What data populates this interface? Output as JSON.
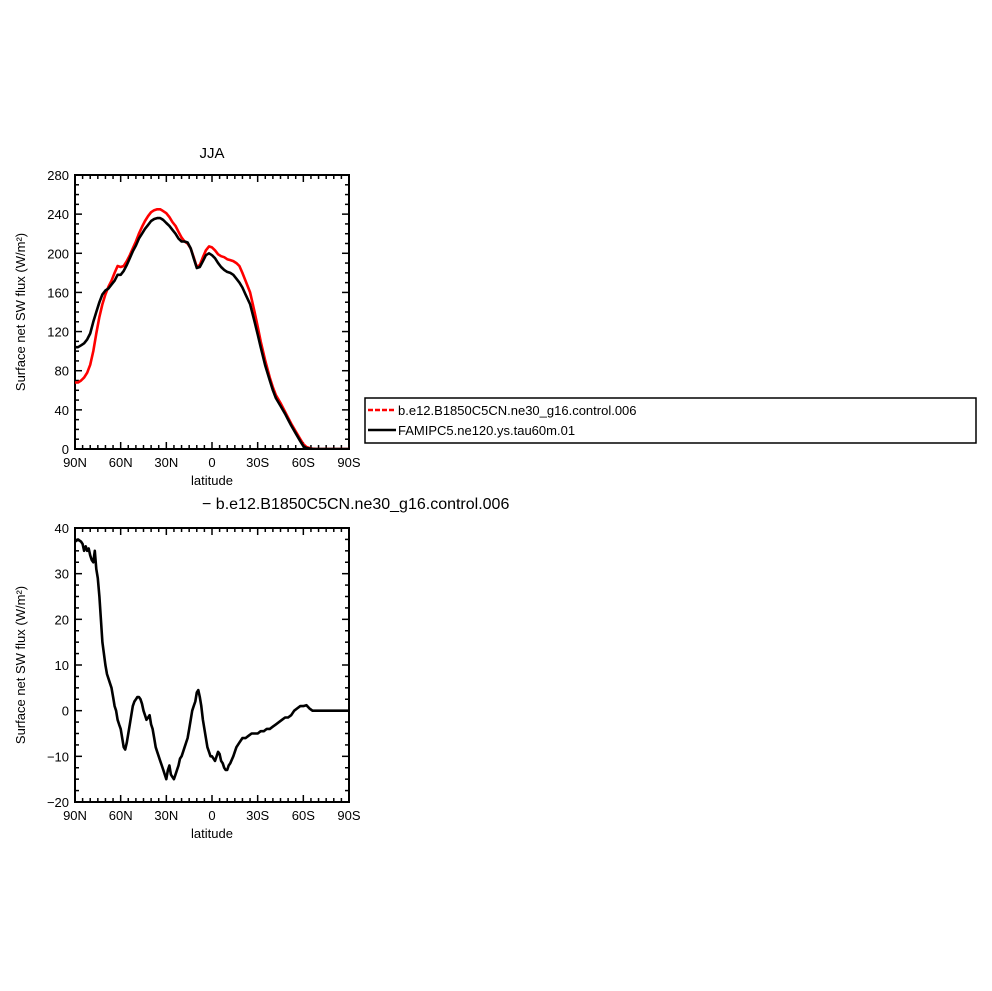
{
  "chart_data": [
    {
      "type": "line",
      "title": "JJA",
      "xlabel": "latitude",
      "ylabel": "Surface net SW flux (W/m²)",
      "xlim": [
        90,
        -90
      ],
      "ylim": [
        0,
        280
      ],
      "xticks": [
        90,
        60,
        30,
        0,
        -30,
        -60,
        -90
      ],
      "xtick_labels": [
        "90N",
        "60N",
        "30N",
        "0",
        "30S",
        "60S",
        "90S"
      ],
      "yticks": [
        0,
        40,
        80,
        120,
        160,
        200,
        240,
        280
      ],
      "ytick_labels": [
        "0",
        "40",
        "80",
        "120",
        "160",
        "200",
        "240",
        "280"
      ],
      "legend_position": "right",
      "series": [
        {
          "name": "b.e12.B1850C5CN.ne30_g16.control.006",
          "color": "#ff0000",
          "dash": true,
          "x": [
            90,
            88,
            86,
            84,
            82,
            80,
            78,
            76,
            74,
            72,
            70,
            68,
            66,
            64,
            62,
            60,
            58,
            56,
            54,
            52,
            50,
            48,
            46,
            44,
            42,
            40,
            38,
            36,
            34,
            33,
            32,
            30,
            28,
            26,
            24,
            22,
            20,
            18,
            16,
            14,
            12,
            10,
            8,
            6,
            4,
            2,
            0,
            -2,
            -4,
            -6,
            -8,
            -10,
            -12,
            -14,
            -16,
            -18,
            -20,
            -22,
            -25,
            -28,
            -30,
            -32,
            -35,
            -38,
            -40,
            -42,
            -45,
            -48,
            -50,
            -52,
            -55,
            -58,
            -60,
            -62,
            -64,
            -65,
            -66,
            -68,
            -70,
            -72,
            -75,
            -78,
            -90
          ],
          "y": [
            68,
            68,
            70,
            73,
            78,
            86,
            100,
            118,
            135,
            148,
            158,
            166,
            172,
            180,
            187,
            186,
            187,
            192,
            198,
            205,
            212,
            220,
            227,
            233,
            238,
            242,
            244,
            245,
            245,
            244,
            243,
            241,
            237,
            232,
            228,
            222,
            216,
            212,
            210,
            205,
            196,
            186,
            188,
            196,
            203,
            207,
            206,
            203,
            199,
            197,
            196,
            194,
            193,
            192,
            190,
            187,
            180,
            172,
            160,
            140,
            125,
            110,
            90,
            73,
            63,
            55,
            47,
            38,
            32,
            26,
            18,
            10,
            5,
            2,
            1,
            0.5,
            0.3,
            0.1,
            0,
            0,
            0,
            0,
            0
          ]
        },
        {
          "name": "FAMIPC5.ne120.ys.tau60m.01",
          "color": "#000000",
          "dash": false,
          "x": [
            90,
            88,
            86,
            84,
            82,
            80,
            78,
            76,
            74,
            72,
            70,
            68,
            66,
            64,
            62,
            60,
            58,
            56,
            54,
            52,
            50,
            48,
            46,
            44,
            42,
            40,
            38,
            36,
            34,
            33,
            32,
            30,
            28,
            26,
            24,
            22,
            20,
            18,
            16,
            14,
            12,
            10,
            8,
            6,
            4,
            2,
            0,
            -2,
            -4,
            -6,
            -8,
            -10,
            -12,
            -14,
            -16,
            -18,
            -20,
            -22,
            -25,
            -28,
            -30,
            -32,
            -35,
            -38,
            -40,
            -42,
            -45,
            -48,
            -50,
            -52,
            -55,
            -58,
            -60,
            -62,
            -64,
            -65,
            -66,
            -68,
            -70,
            -72,
            -75,
            -78,
            -90
          ],
          "y": [
            104,
            104,
            106,
            108,
            112,
            118,
            130,
            140,
            150,
            158,
            162,
            164,
            168,
            172,
            178,
            178,
            182,
            188,
            195,
            202,
            208,
            215,
            220,
            225,
            229,
            233,
            235,
            236,
            236,
            235,
            234,
            231,
            228,
            224,
            220,
            215,
            212,
            212,
            211,
            205,
            195,
            185,
            186,
            192,
            198,
            200,
            198,
            195,
            190,
            186,
            183,
            181,
            180,
            178,
            174,
            170,
            165,
            158,
            148,
            130,
            117,
            104,
            85,
            70,
            60,
            52,
            44,
            36,
            30,
            24,
            16,
            8,
            3,
            1,
            0.5,
            0.3,
            0.1,
            0,
            0,
            0,
            0,
            0,
            0
          ]
        }
      ]
    },
    {
      "type": "line",
      "title": "b.e12.B1850C5CN.ne30_g16.control.006",
      "title_prefix": "−",
      "xlabel": "latitude",
      "ylabel": "Surface net SW flux (W/m²)",
      "xlim": [
        90,
        -90
      ],
      "ylim": [
        -20,
        40
      ],
      "xticks": [
        90,
        60,
        30,
        0,
        -30,
        -60,
        -90
      ],
      "xtick_labels": [
        "90N",
        "60N",
        "30N",
        "0",
        "30S",
        "60S",
        "90S"
      ],
      "yticks": [
        -20,
        -10,
        0,
        10,
        20,
        30,
        40
      ],
      "ytick_labels": [
        "−20",
        "−10",
        "0",
        "10",
        "20",
        "30",
        "40"
      ],
      "series": [
        {
          "name": "",
          "color": "#000000",
          "dash": false,
          "x": [
            90,
            88,
            86,
            85,
            84,
            83,
            82,
            81,
            80,
            79,
            78,
            77,
            76,
            75,
            74,
            73,
            72,
            70,
            69,
            68,
            67,
            66,
            65,
            64,
            63,
            62,
            61,
            60,
            59,
            58,
            57,
            56,
            55,
            54,
            53,
            52,
            51,
            50,
            49,
            48,
            47,
            46,
            45,
            44,
            43,
            42,
            41,
            40,
            39,
            38,
            37,
            36,
            35,
            34,
            33,
            32,
            31,
            30,
            29,
            28,
            27,
            26,
            25,
            24,
            23,
            22,
            21,
            20,
            19,
            18,
            17,
            16,
            15,
            14,
            13,
            12,
            11,
            10,
            9,
            8,
            7,
            6,
            5,
            4,
            3,
            2,
            1,
            0,
            -1,
            -2,
            -3,
            -4,
            -5,
            -6,
            -7,
            -8,
            -9,
            -10,
            -11,
            -12,
            -14,
            -16,
            -18,
            -20,
            -22,
            -24,
            -26,
            -28,
            -30,
            -32,
            -34,
            -36,
            -38,
            -40,
            -42,
            -44,
            -46,
            -48,
            -50,
            -52,
            -54,
            -56,
            -58,
            -60,
            -62,
            -64,
            -66,
            -68,
            -70,
            -72,
            -75,
            -80,
            -85,
            -90
          ],
          "y": [
            37,
            37.5,
            37,
            36.5,
            35,
            36,
            35,
            35.5,
            34,
            33,
            32.5,
            35,
            31,
            29,
            25,
            20,
            15,
            10,
            8,
            7,
            6,
            5,
            3,
            1,
            0,
            -2,
            -3,
            -4,
            -6,
            -8,
            -8.5,
            -7,
            -5,
            -3,
            -1,
            1,
            2,
            2.5,
            3,
            3,
            2.5,
            1.5,
            0,
            -1,
            -2,
            -1.5,
            -1,
            -3,
            -4,
            -6,
            -8,
            -9,
            -10,
            -11,
            -12,
            -13,
            -14,
            -15,
            -13,
            -12,
            -14,
            -14.5,
            -15,
            -14,
            -13,
            -12,
            -10.5,
            -10,
            -9,
            -8,
            -7,
            -6,
            -4,
            -2,
            0,
            1,
            2,
            4,
            4.5,
            3,
            1,
            -2,
            -4,
            -6,
            -8,
            -9,
            -10,
            -10,
            -10.5,
            -11,
            -10,
            -9,
            -9.5,
            -11,
            -11.5,
            -12.5,
            -13,
            -13,
            -12,
            -11.5,
            -10,
            -8,
            -7,
            -6,
            -6,
            -5.5,
            -5,
            -5,
            -5,
            -4.5,
            -4.5,
            -4,
            -4,
            -3.5,
            -3,
            -2.5,
            -2,
            -1.5,
            -1.5,
            -1,
            0,
            0.5,
            1,
            1,
            1.2,
            0.5,
            0,
            0,
            0,
            0,
            0,
            0,
            0,
            0
          ]
        }
      ]
    }
  ]
}
